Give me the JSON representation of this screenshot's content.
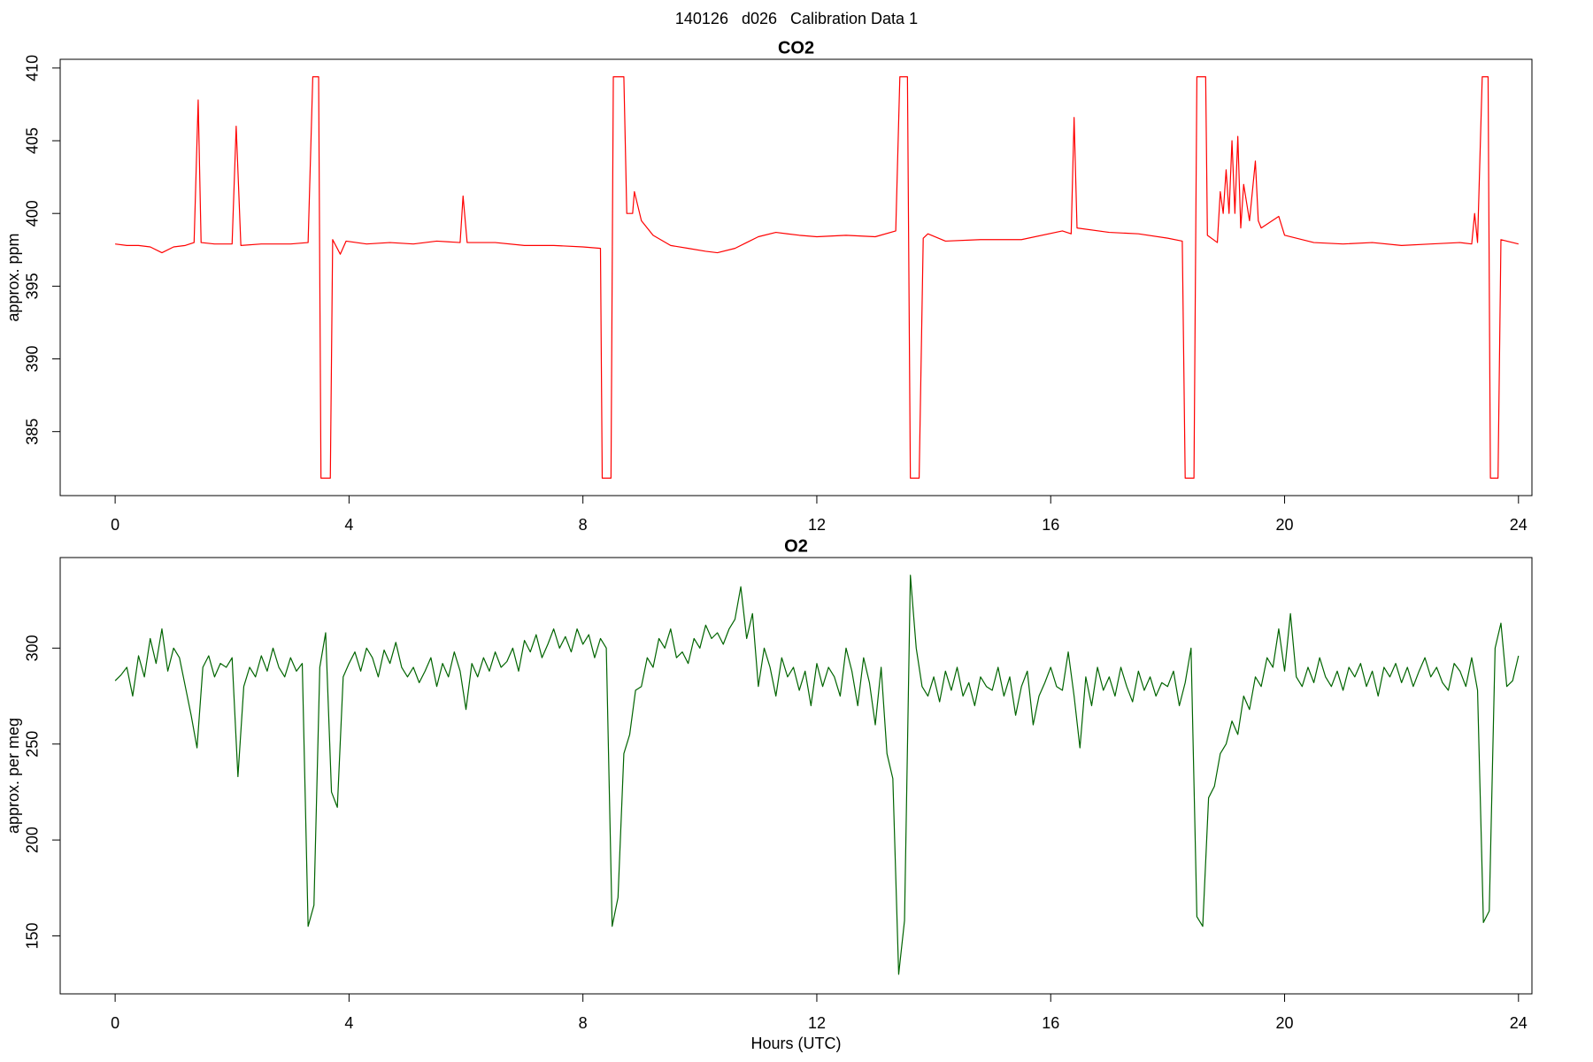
{
  "title": "140126   d026   Calibration Data 1",
  "chart_data": [
    {
      "type": "line",
      "title": "CO2",
      "y_label": "approx. ppm",
      "xlim": [
        -0.94,
        24.23
      ],
      "xticks": [
        0,
        4,
        8,
        12,
        16,
        20,
        24
      ],
      "ylim": [
        380.6,
        410.6
      ],
      "yticks": [
        385,
        390,
        395,
        400,
        405,
        410
      ],
      "x": [
        0,
        0.2,
        0.4,
        0.6,
        0.8,
        1.0,
        1.2,
        1.35,
        1.42,
        1.47,
        1.7,
        2.0,
        2.07,
        2.15,
        2.5,
        3.0,
        3.3,
        3.38,
        3.48,
        3.52,
        3.68,
        3.72,
        3.85,
        3.95,
        4.3,
        4.7,
        5.1,
        5.5,
        5.9,
        5.95,
        6.02,
        6.5,
        7.0,
        7.5,
        8.0,
        8.3,
        8.33,
        8.48,
        8.52,
        8.7,
        8.75,
        8.85,
        8.88,
        9.0,
        9.2,
        9.5,
        9.8,
        10.1,
        10.3,
        10.6,
        10.8,
        11.0,
        11.3,
        11.7,
        12.0,
        12.5,
        13.0,
        13.35,
        13.42,
        13.55,
        13.6,
        13.75,
        13.82,
        13.9,
        14.2,
        14.8,
        15.5,
        16.2,
        16.35,
        16.4,
        16.45,
        17.0,
        17.5,
        18.0,
        18.25,
        18.3,
        18.45,
        18.5,
        18.65,
        18.68,
        18.85,
        18.9,
        18.95,
        19.0,
        19.05,
        19.1,
        19.15,
        19.2,
        19.25,
        19.3,
        19.4,
        19.5,
        19.55,
        19.6,
        19.9,
        20.0,
        20.5,
        21.0,
        21.5,
        22.0,
        22.5,
        23.0,
        23.2,
        23.25,
        23.3,
        23.38,
        23.48,
        23.52,
        23.65,
        23.7,
        24.0
      ],
      "series": [
        {
          "name": "CO2",
          "color": "#ff0000",
          "values": [
            397.9,
            397.8,
            397.8,
            397.7,
            397.3,
            397.7,
            397.8,
            398.0,
            407.8,
            398.0,
            397.9,
            397.9,
            406.0,
            397.8,
            397.9,
            397.9,
            398.0,
            409.4,
            409.4,
            381.8,
            381.8,
            398.2,
            397.2,
            398.1,
            397.9,
            398.0,
            397.9,
            398.1,
            398.0,
            401.2,
            398.0,
            398.0,
            397.8,
            397.8,
            397.7,
            397.6,
            381.8,
            381.8,
            409.4,
            409.4,
            400.0,
            400.0,
            401.5,
            399.5,
            398.5,
            397.8,
            397.6,
            397.4,
            397.3,
            397.6,
            398.0,
            398.4,
            398.7,
            398.5,
            398.4,
            398.5,
            398.4,
            398.8,
            409.4,
            409.4,
            381.8,
            381.8,
            398.3,
            398.6,
            398.1,
            398.2,
            398.2,
            398.8,
            398.6,
            406.6,
            399.0,
            398.7,
            398.6,
            398.3,
            398.1,
            381.8,
            381.8,
            409.4,
            409.4,
            398.5,
            398.0,
            401.5,
            400.0,
            403.0,
            400.0,
            405.0,
            400.0,
            405.3,
            399.0,
            402.0,
            399.5,
            403.6,
            399.5,
            399.0,
            399.8,
            398.5,
            398.0,
            397.9,
            398.0,
            397.8,
            397.9,
            398.0,
            397.9,
            400.0,
            398.0,
            409.4,
            409.4,
            381.8,
            381.8,
            398.2,
            397.9
          ]
        }
      ]
    },
    {
      "type": "line",
      "title": "O2",
      "y_label": "approx. per meg",
      "x_label": "Hours (UTC)",
      "xlim": [
        -0.94,
        24.23
      ],
      "xticks": [
        0,
        4,
        8,
        12,
        16,
        20,
        24
      ],
      "ylim": [
        119.8,
        347.2
      ],
      "yticks": [
        150,
        200,
        250,
        300
      ],
      "x": [
        0,
        0.1,
        0.2,
        0.3,
        0.4,
        0.5,
        0.6,
        0.7,
        0.8,
        0.9,
        1.0,
        1.1,
        1.2,
        1.3,
        1.4,
        1.5,
        1.6,
        1.7,
        1.8,
        1.9,
        2.0,
        2.1,
        2.2,
        2.3,
        2.4,
        2.5,
        2.6,
        2.7,
        2.8,
        2.9,
        3.0,
        3.1,
        3.2,
        3.3,
        3.4,
        3.5,
        3.6,
        3.7,
        3.8,
        3.9,
        4.0,
        4.1,
        4.2,
        4.3,
        4.4,
        4.5,
        4.6,
        4.7,
        4.8,
        4.9,
        5.0,
        5.1,
        5.2,
        5.3,
        5.4,
        5.5,
        5.6,
        5.7,
        5.8,
        5.9,
        6.0,
        6.1,
        6.2,
        6.3,
        6.4,
        6.5,
        6.6,
        6.7,
        6.8,
        6.9,
        7.0,
        7.1,
        7.2,
        7.3,
        7.4,
        7.5,
        7.6,
        7.7,
        7.8,
        7.9,
        8.0,
        8.1,
        8.2,
        8.3,
        8.4,
        8.5,
        8.6,
        8.7,
        8.8,
        8.9,
        9.0,
        9.1,
        9.2,
        9.3,
        9.4,
        9.5,
        9.6,
        9.7,
        9.8,
        9.9,
        10.0,
        10.1,
        10.2,
        10.3,
        10.4,
        10.5,
        10.6,
        10.7,
        10.8,
        10.9,
        11.0,
        11.1,
        11.2,
        11.3,
        11.4,
        11.5,
        11.6,
        11.7,
        11.8,
        11.9,
        12.0,
        12.1,
        12.2,
        12.3,
        12.4,
        12.5,
        12.6,
        12.7,
        12.8,
        12.9,
        13.0,
        13.1,
        13.2,
        13.3,
        13.4,
        13.5,
        13.6,
        13.7,
        13.8,
        13.9,
        14.0,
        14.1,
        14.2,
        14.3,
        14.4,
        14.5,
        14.6,
        14.7,
        14.8,
        14.9,
        15.0,
        15.1,
        15.2,
        15.3,
        15.4,
        15.5,
        15.6,
        15.7,
        15.8,
        15.9,
        16.0,
        16.1,
        16.2,
        16.3,
        16.4,
        16.5,
        16.6,
        16.7,
        16.8,
        16.9,
        17.0,
        17.1,
        17.2,
        17.3,
        17.4,
        17.5,
        17.6,
        17.7,
        17.8,
        17.9,
        18.0,
        18.1,
        18.2,
        18.3,
        18.4,
        18.5,
        18.6,
        18.7,
        18.8,
        18.9,
        19.0,
        19.1,
        19.2,
        19.3,
        19.4,
        19.5,
        19.6,
        19.7,
        19.8,
        19.9,
        20.0,
        20.1,
        20.2,
        20.3,
        20.4,
        20.5,
        20.6,
        20.7,
        20.8,
        20.9,
        21.0,
        21.1,
        21.2,
        21.3,
        21.4,
        21.5,
        21.6,
        21.7,
        21.8,
        21.9,
        22.0,
        22.1,
        22.2,
        22.3,
        22.4,
        22.5,
        22.6,
        22.7,
        22.8,
        22.9,
        23.0,
        23.1,
        23.2,
        23.3,
        23.4,
        23.5,
        23.6,
        23.7,
        23.8,
        23.9,
        24.0
      ],
      "series": [
        {
          "name": "O2",
          "color": "#006400",
          "values": [
            283,
            286,
            290,
            275,
            296,
            285,
            305,
            292,
            310,
            288,
            300,
            295,
            280,
            265,
            248,
            290,
            296,
            285,
            292,
            290,
            295,
            233,
            280,
            290,
            285,
            296,
            288,
            300,
            290,
            285,
            295,
            288,
            292,
            155,
            166,
            290,
            308,
            225,
            217,
            285,
            292,
            298,
            288,
            300,
            295,
            285,
            299,
            292,
            303,
            290,
            285,
            290,
            282,
            288,
            295,
            280,
            292,
            285,
            298,
            288,
            268,
            292,
            285,
            295,
            288,
            298,
            290,
            293,
            300,
            288,
            304,
            298,
            307,
            295,
            302,
            310,
            300,
            306,
            298,
            310,
            302,
            307,
            295,
            305,
            300,
            155,
            170,
            245,
            255,
            278,
            280,
            295,
            290,
            305,
            300,
            310,
            295,
            298,
            292,
            305,
            300,
            312,
            305,
            308,
            302,
            310,
            315,
            332,
            305,
            318,
            280,
            300,
            290,
            275,
            295,
            285,
            290,
            278,
            288,
            270,
            292,
            280,
            290,
            285,
            275,
            300,
            288,
            270,
            295,
            282,
            260,
            290,
            245,
            232,
            130,
            158,
            338,
            300,
            280,
            275,
            285,
            272,
            288,
            278,
            290,
            275,
            282,
            270,
            285,
            280,
            278,
            290,
            275,
            285,
            265,
            280,
            288,
            260,
            275,
            282,
            290,
            280,
            278,
            298,
            275,
            248,
            285,
            270,
            290,
            278,
            285,
            275,
            290,
            280,
            272,
            288,
            278,
            285,
            275,
            282,
            280,
            288,
            270,
            282,
            300,
            160,
            155,
            222,
            228,
            245,
            250,
            262,
            255,
            275,
            268,
            285,
            280,
            295,
            290,
            310,
            288,
            318,
            285,
            280,
            290,
            282,
            295,
            285,
            280,
            288,
            278,
            290,
            285,
            292,
            280,
            288,
            275,
            290,
            285,
            292,
            282,
            290,
            280,
            288,
            295,
            285,
            290,
            282,
            278,
            292,
            288,
            280,
            295,
            278,
            157,
            163,
            300,
            313,
            280,
            283,
            296
          ]
        }
      ]
    }
  ]
}
